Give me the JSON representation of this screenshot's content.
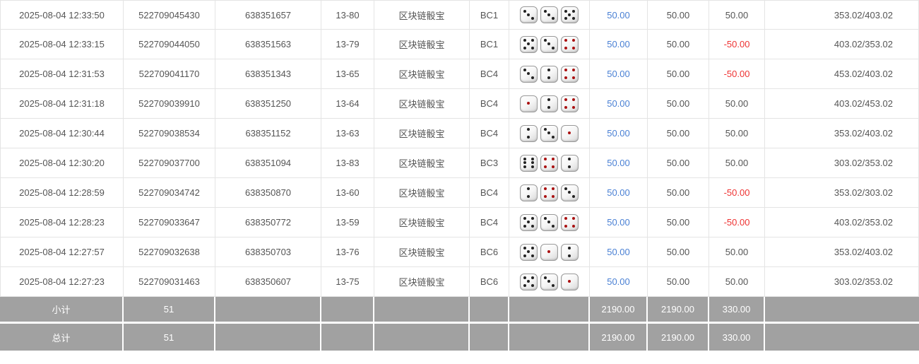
{
  "colors": {
    "link_blue": "#4a80d4",
    "negative_red": "#ee3333",
    "footer_gray": "#a1a1a1",
    "border_gray": "#e4e4e4",
    "dice_pip_black": "#222222",
    "dice_pip_red": "#aa1111"
  },
  "table": {
    "rows": [
      {
        "time": "2025-08-04 12:33:50",
        "order_no": "522709045430",
        "round_no": "638351657",
        "issue": "13-80",
        "game": "区块链骰宝",
        "table_id": "BC1",
        "dice": [
          3,
          3,
          5
        ],
        "bet": "50.00",
        "valid": "50.00",
        "winloss": "50.00",
        "balance": "353.02/403.02"
      },
      {
        "time": "2025-08-04 12:33:15",
        "order_no": "522709044050",
        "round_no": "638351563",
        "issue": "13-79",
        "game": "区块链骰宝",
        "table_id": "BC1",
        "dice": [
          5,
          3,
          4
        ],
        "bet": "50.00",
        "valid": "50.00",
        "winloss": "-50.00",
        "balance": "403.02/353.02"
      },
      {
        "time": "2025-08-04 12:31:53",
        "order_no": "522709041170",
        "round_no": "638351343",
        "issue": "13-65",
        "game": "区块链骰宝",
        "table_id": "BC4",
        "dice": [
          3,
          2,
          4
        ],
        "bet": "50.00",
        "valid": "50.00",
        "winloss": "-50.00",
        "balance": "453.02/403.02"
      },
      {
        "time": "2025-08-04 12:31:18",
        "order_no": "522709039910",
        "round_no": "638351250",
        "issue": "13-64",
        "game": "区块链骰宝",
        "table_id": "BC4",
        "dice": [
          1,
          2,
          4
        ],
        "bet": "50.00",
        "valid": "50.00",
        "winloss": "50.00",
        "balance": "403.02/453.02"
      },
      {
        "time": "2025-08-04 12:30:44",
        "order_no": "522709038534",
        "round_no": "638351152",
        "issue": "13-63",
        "game": "区块链骰宝",
        "table_id": "BC4",
        "dice": [
          2,
          3,
          1
        ],
        "bet": "50.00",
        "valid": "50.00",
        "winloss": "50.00",
        "balance": "353.02/403.02"
      },
      {
        "time": "2025-08-04 12:30:20",
        "order_no": "522709037700",
        "round_no": "638351094",
        "issue": "13-83",
        "game": "区块链骰宝",
        "table_id": "BC3",
        "dice": [
          6,
          4,
          2
        ],
        "bet": "50.00",
        "valid": "50.00",
        "winloss": "50.00",
        "balance": "303.02/353.02"
      },
      {
        "time": "2025-08-04 12:28:59",
        "order_no": "522709034742",
        "round_no": "638350870",
        "issue": "13-60",
        "game": "区块链骰宝",
        "table_id": "BC4",
        "dice": [
          2,
          4,
          3
        ],
        "bet": "50.00",
        "valid": "50.00",
        "winloss": "-50.00",
        "balance": "353.02/303.02"
      },
      {
        "time": "2025-08-04 12:28:23",
        "order_no": "522709033647",
        "round_no": "638350772",
        "issue": "13-59",
        "game": "区块链骰宝",
        "table_id": "BC4",
        "dice": [
          5,
          3,
          4
        ],
        "bet": "50.00",
        "valid": "50.00",
        "winloss": "-50.00",
        "balance": "403.02/353.02"
      },
      {
        "time": "2025-08-04 12:27:57",
        "order_no": "522709032638",
        "round_no": "638350703",
        "issue": "13-76",
        "game": "区块链骰宝",
        "table_id": "BC6",
        "dice": [
          5,
          1,
          2
        ],
        "bet": "50.00",
        "valid": "50.00",
        "winloss": "50.00",
        "balance": "353.02/403.02"
      },
      {
        "time": "2025-08-04 12:27:23",
        "order_no": "522709031463",
        "round_no": "638350607",
        "issue": "13-75",
        "game": "区块链骰宝",
        "table_id": "BC6",
        "dice": [
          5,
          3,
          1
        ],
        "bet": "50.00",
        "valid": "50.00",
        "winloss": "50.00",
        "balance": "303.02/353.02"
      }
    ],
    "footer": {
      "subtotal": {
        "label": "小计",
        "count": "51",
        "bet": "2190.00",
        "valid": "2190.00",
        "winloss": "330.00"
      },
      "total": {
        "label": "总计",
        "count": "51",
        "bet": "2190.00",
        "valid": "2190.00",
        "winloss": "330.00"
      }
    }
  }
}
